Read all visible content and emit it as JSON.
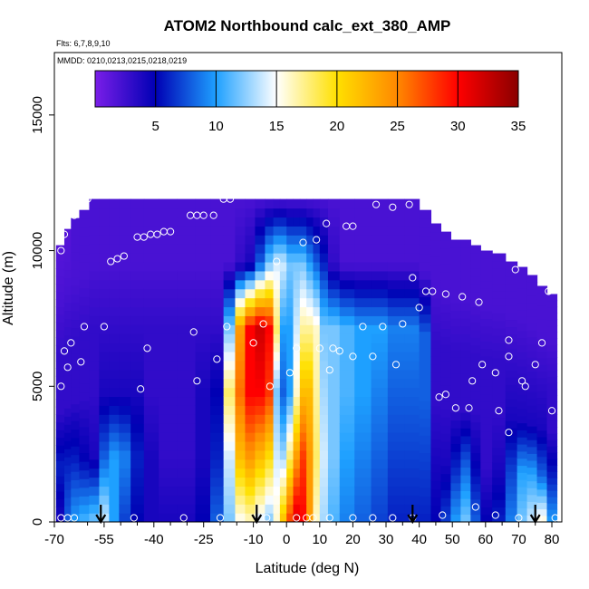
{
  "chart_data": {
    "type": "heatmap",
    "title": "ATOM2 Northbound calc_ext_380_AMP",
    "annotations": {
      "flights": "Flts: 6,7,8,9,10",
      "dates": "MMDD: 0210,0213,0215,0218,0219"
    },
    "xlabel": "Latitude (deg N)",
    "ylabel": "Altitude (m)",
    "xlim": [
      -70,
      83
    ],
    "ylim": [
      0,
      17300
    ],
    "x_ticks": [
      -70,
      -55,
      -40,
      -25,
      -10,
      0,
      10,
      20,
      30,
      40,
      50,
      60,
      70,
      80
    ],
    "x_tick_labels": [
      "-70",
      "-55",
      "-40",
      "-25",
      "-10",
      "0",
      "10",
      "20",
      "30",
      "40",
      "50",
      "60",
      "70",
      "80"
    ],
    "x_minor_ticks": [
      -60,
      -50,
      -45,
      -35,
      -30,
      -20,
      -15,
      -5,
      5,
      15,
      25,
      35,
      45,
      55,
      65,
      75
    ],
    "y_ticks": [
      0,
      5000,
      10000,
      15000
    ],
    "y_tick_labels": [
      "0",
      "5000",
      "10000",
      "15000"
    ],
    "colorbar": {
      "range": [
        0,
        35
      ],
      "ticks": [
        5,
        10,
        15,
        20,
        25,
        30,
        35
      ],
      "tick_labels": [
        "5",
        "10",
        "15",
        "20",
        "25",
        "30",
        "35"
      ],
      "colors": [
        "#7a1ee8",
        "#0000b4",
        "#1ea0ff",
        "#ffffff",
        "#ffe000",
        "#ff8800",
        "#ff0000",
        "#8a0000"
      ]
    },
    "profiles": [
      {
        "lat": -68.0,
        "top": 10200,
        "vals": [
          4,
          6,
          3,
          3,
          2,
          1.5
        ]
      },
      {
        "lat": -66.0,
        "top": 10800,
        "vals": [
          8,
          6,
          3,
          3,
          2,
          1.5
        ]
      },
      {
        "lat": -64.0,
        "top": 11200,
        "vals": [
          10,
          6,
          3,
          3,
          2,
          2
        ]
      },
      {
        "lat": -61.0,
        "top": 11500,
        "vals": [
          11,
          5,
          3,
          3,
          2,
          2
        ]
      },
      {
        "lat": -58.0,
        "top": 11900,
        "vals": [
          12,
          4,
          3,
          3,
          2,
          2
        ]
      },
      {
        "lat": -55.0,
        "top": 11900,
        "vals": [
          14,
          8,
          4,
          3,
          2,
          2
        ]
      },
      {
        "lat": -52.0,
        "top": 11900,
        "vals": [
          10,
          10,
          4,
          3,
          2,
          2
        ]
      },
      {
        "lat": -49.0,
        "top": 11900,
        "vals": [
          7,
          9,
          4,
          3,
          2,
          2
        ]
      },
      {
        "lat": -45.0,
        "top": 11900,
        "vals": [
          5,
          6,
          4,
          3,
          2,
          2
        ]
      },
      {
        "lat": -41.0,
        "top": 11900,
        "vals": [
          4,
          4,
          3,
          3,
          2,
          2
        ]
      },
      {
        "lat": -36.0,
        "top": 11900,
        "vals": [
          4,
          3,
          3,
          3,
          2,
          2
        ]
      },
      {
        "lat": -30.0,
        "top": 11900,
        "vals": [
          4,
          3,
          3,
          3,
          2,
          2
        ]
      },
      {
        "lat": -25.0,
        "top": 11900,
        "vals": [
          5,
          4,
          4,
          3,
          2,
          2
        ]
      },
      {
        "lat": -21.0,
        "top": 11900,
        "vals": [
          8,
          6,
          5,
          3,
          2,
          2
        ]
      },
      {
        "lat": -17.0,
        "top": 11900,
        "vals": [
          12,
          14,
          18,
          12,
          2,
          2
        ]
      },
      {
        "lat": -14.0,
        "top": 11900,
        "vals": [
          15,
          22,
          26,
          24,
          3,
          2
        ]
      },
      {
        "lat": -11.0,
        "top": 11900,
        "vals": [
          16,
          24,
          30,
          30,
          4,
          2
        ]
      },
      {
        "lat": -8.0,
        "top": 11900,
        "vals": [
          14,
          22,
          30,
          32,
          8,
          2
        ]
      },
      {
        "lat": -5.0,
        "top": 11900,
        "vals": [
          12,
          20,
          28,
          30,
          12,
          2
        ]
      },
      {
        "lat": -3.0,
        "top": 11900,
        "vals": [
          16,
          14,
          12,
          18,
          14,
          2
        ]
      },
      {
        "lat": -1.0,
        "top": 11900,
        "vals": [
          22,
          13,
          8,
          10,
          14,
          2
        ]
      },
      {
        "lat": 1.0,
        "top": 11900,
        "vals": [
          28,
          18,
          10,
          10,
          12,
          2
        ]
      },
      {
        "lat": 3.0,
        "top": 11900,
        "vals": [
          32,
          24,
          16,
          14,
          12,
          2
        ]
      },
      {
        "lat": 5.0,
        "top": 11900,
        "vals": [
          30,
          28,
          22,
          17,
          12,
          2
        ]
      },
      {
        "lat": 7.0,
        "top": 11900,
        "vals": [
          24,
          24,
          22,
          17,
          10,
          2
        ]
      },
      {
        "lat": 9.0,
        "top": 11900,
        "vals": [
          16,
          18,
          17,
          16,
          8,
          2
        ]
      },
      {
        "lat": 11.0,
        "top": 11900,
        "vals": [
          13,
          14,
          13,
          12,
          6,
          2
        ]
      },
      {
        "lat": 14.0,
        "top": 11900,
        "vals": [
          11,
          12,
          12,
          12,
          3,
          2
        ]
      },
      {
        "lat": 18.0,
        "top": 11900,
        "vals": [
          9,
          10,
          11,
          11,
          2,
          2
        ]
      },
      {
        "lat": 23.0,
        "top": 11900,
        "vals": [
          8,
          9,
          10,
          10,
          2,
          2
        ]
      },
      {
        "lat": 28.0,
        "top": 11900,
        "vals": [
          7,
          8,
          9,
          10,
          2,
          2
        ]
      },
      {
        "lat": 33.0,
        "top": 11900,
        "vals": [
          6,
          7,
          8,
          9,
          2,
          2
        ]
      },
      {
        "lat": 38.0,
        "top": 11900,
        "vals": [
          6,
          7,
          8,
          9,
          2,
          2
        ]
      },
      {
        "lat": 42.0,
        "top": 11500,
        "vals": [
          6,
          7,
          8,
          8,
          2,
          2
        ]
      },
      {
        "lat": 45.0,
        "top": 11000,
        "vals": [
          5,
          4,
          3,
          3,
          2,
          2
        ]
      },
      {
        "lat": 48.0,
        "top": 10700,
        "vals": [
          7,
          4,
          3,
          3,
          2,
          2
        ]
      },
      {
        "lat": 51.0,
        "top": 10400,
        "vals": [
          10,
          6,
          3,
          3,
          2,
          2
        ]
      },
      {
        "lat": 54.0,
        "top": 10400,
        "vals": [
          12,
          8,
          3,
          3,
          2,
          2
        ]
      },
      {
        "lat": 57.0,
        "top": 10200,
        "vals": [
          8,
          5,
          3,
          3,
          2,
          2
        ]
      },
      {
        "lat": 60.0,
        "top": 10000,
        "vals": [
          5,
          3,
          3,
          3,
          2,
          2
        ]
      },
      {
        "lat": 64.0,
        "top": 9900,
        "vals": [
          6,
          4,
          3,
          3,
          2,
          2
        ]
      },
      {
        "lat": 68.0,
        "top": 9600,
        "vals": [
          9,
          7,
          4,
          3,
          2,
          2
        ]
      },
      {
        "lat": 71.0,
        "top": 9400,
        "vals": [
          12,
          10,
          4,
          3,
          2,
          2
        ]
      },
      {
        "lat": 74.0,
        "top": 9100,
        "vals": [
          14,
          10,
          4,
          3,
          2,
          2
        ]
      },
      {
        "lat": 77.0,
        "top": 8700,
        "vals": [
          16,
          8,
          4,
          3,
          2,
          2
        ]
      },
      {
        "lat": 80.0,
        "top": 8400,
        "vals": [
          10,
          6,
          3,
          3,
          2,
          2
        ]
      }
    ],
    "samples": [
      {
        "lat": -68,
        "alt": 10000
      },
      {
        "lat": -67,
        "alt": 10600
      },
      {
        "lat": -64,
        "alt": 11300
      },
      {
        "lat": -61,
        "alt": 11800
      },
      {
        "lat": -60,
        "alt": 11900
      },
      {
        "lat": -67,
        "alt": 6300
      },
      {
        "lat": -65,
        "alt": 6600
      },
      {
        "lat": -66,
        "alt": 5700
      },
      {
        "lat": -62,
        "alt": 5900
      },
      {
        "lat": -61,
        "alt": 7200
      },
      {
        "lat": -55,
        "alt": 7200
      },
      {
        "lat": -68,
        "alt": 5000
      },
      {
        "lat": -44,
        "alt": 4900
      },
      {
        "lat": -42,
        "alt": 6400
      },
      {
        "lat": -53,
        "alt": 9600
      },
      {
        "lat": -51,
        "alt": 9700
      },
      {
        "lat": -49,
        "alt": 9800
      },
      {
        "lat": -45,
        "alt": 10500
      },
      {
        "lat": -43,
        "alt": 10500
      },
      {
        "lat": -41,
        "alt": 10600
      },
      {
        "lat": -39,
        "alt": 10600
      },
      {
        "lat": -37,
        "alt": 10700
      },
      {
        "lat": -35,
        "alt": 10700
      },
      {
        "lat": -29,
        "alt": 11300
      },
      {
        "lat": -27,
        "alt": 11300
      },
      {
        "lat": -25,
        "alt": 11300
      },
      {
        "lat": -22,
        "alt": 11300
      },
      {
        "lat": -19,
        "alt": 11900
      },
      {
        "lat": -17,
        "alt": 11900
      },
      {
        "lat": -28,
        "alt": 7000
      },
      {
        "lat": -27,
        "alt": 5200
      },
      {
        "lat": -21,
        "alt": 6000
      },
      {
        "lat": -18,
        "alt": 7200
      },
      {
        "lat": -10,
        "alt": 6600
      },
      {
        "lat": -7,
        "alt": 7300
      },
      {
        "lat": -5,
        "alt": 5000
      },
      {
        "lat": -3,
        "alt": 9600
      },
      {
        "lat": 1,
        "alt": 5500
      },
      {
        "lat": 3,
        "alt": 6400
      },
      {
        "lat": 5,
        "alt": 10300
      },
      {
        "lat": 9,
        "alt": 10400
      },
      {
        "lat": 10,
        "alt": 6400
      },
      {
        "lat": 12,
        "alt": 11000
      },
      {
        "lat": 13,
        "alt": 5600
      },
      {
        "lat": 14,
        "alt": 6400
      },
      {
        "lat": 16,
        "alt": 6300
      },
      {
        "lat": 18,
        "alt": 10900
      },
      {
        "lat": 20,
        "alt": 10900
      },
      {
        "lat": 20,
        "alt": 6100
      },
      {
        "lat": 23,
        "alt": 7200
      },
      {
        "lat": 26,
        "alt": 6100
      },
      {
        "lat": 27,
        "alt": 11700
      },
      {
        "lat": 29,
        "alt": 7200
      },
      {
        "lat": 32,
        "alt": 11600
      },
      {
        "lat": 33,
        "alt": 5800
      },
      {
        "lat": 35,
        "alt": 7300
      },
      {
        "lat": 37,
        "alt": 11700
      },
      {
        "lat": 38,
        "alt": 9000
      },
      {
        "lat": 40,
        "alt": 7900
      },
      {
        "lat": 42,
        "alt": 8500
      },
      {
        "lat": 44,
        "alt": 8500
      },
      {
        "lat": 46,
        "alt": 4600
      },
      {
        "lat": 48,
        "alt": 4700
      },
      {
        "lat": 48,
        "alt": 8400
      },
      {
        "lat": 51,
        "alt": 4200
      },
      {
        "lat": 53,
        "alt": 8300
      },
      {
        "lat": 55,
        "alt": 4200
      },
      {
        "lat": 56,
        "alt": 5200
      },
      {
        "lat": 58,
        "alt": 8100
      },
      {
        "lat": 59,
        "alt": 5800
      },
      {
        "lat": 63,
        "alt": 5500
      },
      {
        "lat": 64,
        "alt": 4100
      },
      {
        "lat": 67,
        "alt": 3300
      },
      {
        "lat": 67,
        "alt": 6100
      },
      {
        "lat": 67,
        "alt": 6700
      },
      {
        "lat": 69,
        "alt": 9300
      },
      {
        "lat": 71,
        "alt": 5200
      },
      {
        "lat": 72,
        "alt": 5000
      },
      {
        "lat": 74,
        "alt": 9300
      },
      {
        "lat": 75,
        "alt": 5800
      },
      {
        "lat": 77,
        "alt": 6600
      },
      {
        "lat": 79,
        "alt": 8500
      },
      {
        "lat": 80,
        "alt": 4100
      },
      {
        "lat": -68,
        "alt": 150
      },
      {
        "lat": -66,
        "alt": 150
      },
      {
        "lat": -64,
        "alt": 150
      },
      {
        "lat": -46,
        "alt": 150
      },
      {
        "lat": -31,
        "alt": 150
      },
      {
        "lat": -20,
        "alt": 150
      },
      {
        "lat": -6,
        "alt": 150
      },
      {
        "lat": 3,
        "alt": 150
      },
      {
        "lat": 6,
        "alt": 150
      },
      {
        "lat": 8,
        "alt": 150
      },
      {
        "lat": 13,
        "alt": 150
      },
      {
        "lat": 20,
        "alt": 150
      },
      {
        "lat": 26,
        "alt": 150
      },
      {
        "lat": 32,
        "alt": 150
      },
      {
        "lat": 38,
        "alt": 150
      },
      {
        "lat": 47,
        "alt": 250
      },
      {
        "lat": 57,
        "alt": 550
      },
      {
        "lat": 63,
        "alt": 250
      },
      {
        "lat": 70,
        "alt": 150
      },
      {
        "lat": 76,
        "alt": 150
      },
      {
        "lat": 81,
        "alt": 150
      }
    ],
    "arrows": [
      -56,
      -9,
      38,
      75
    ],
    "legend": "none",
    "grid": false
  }
}
